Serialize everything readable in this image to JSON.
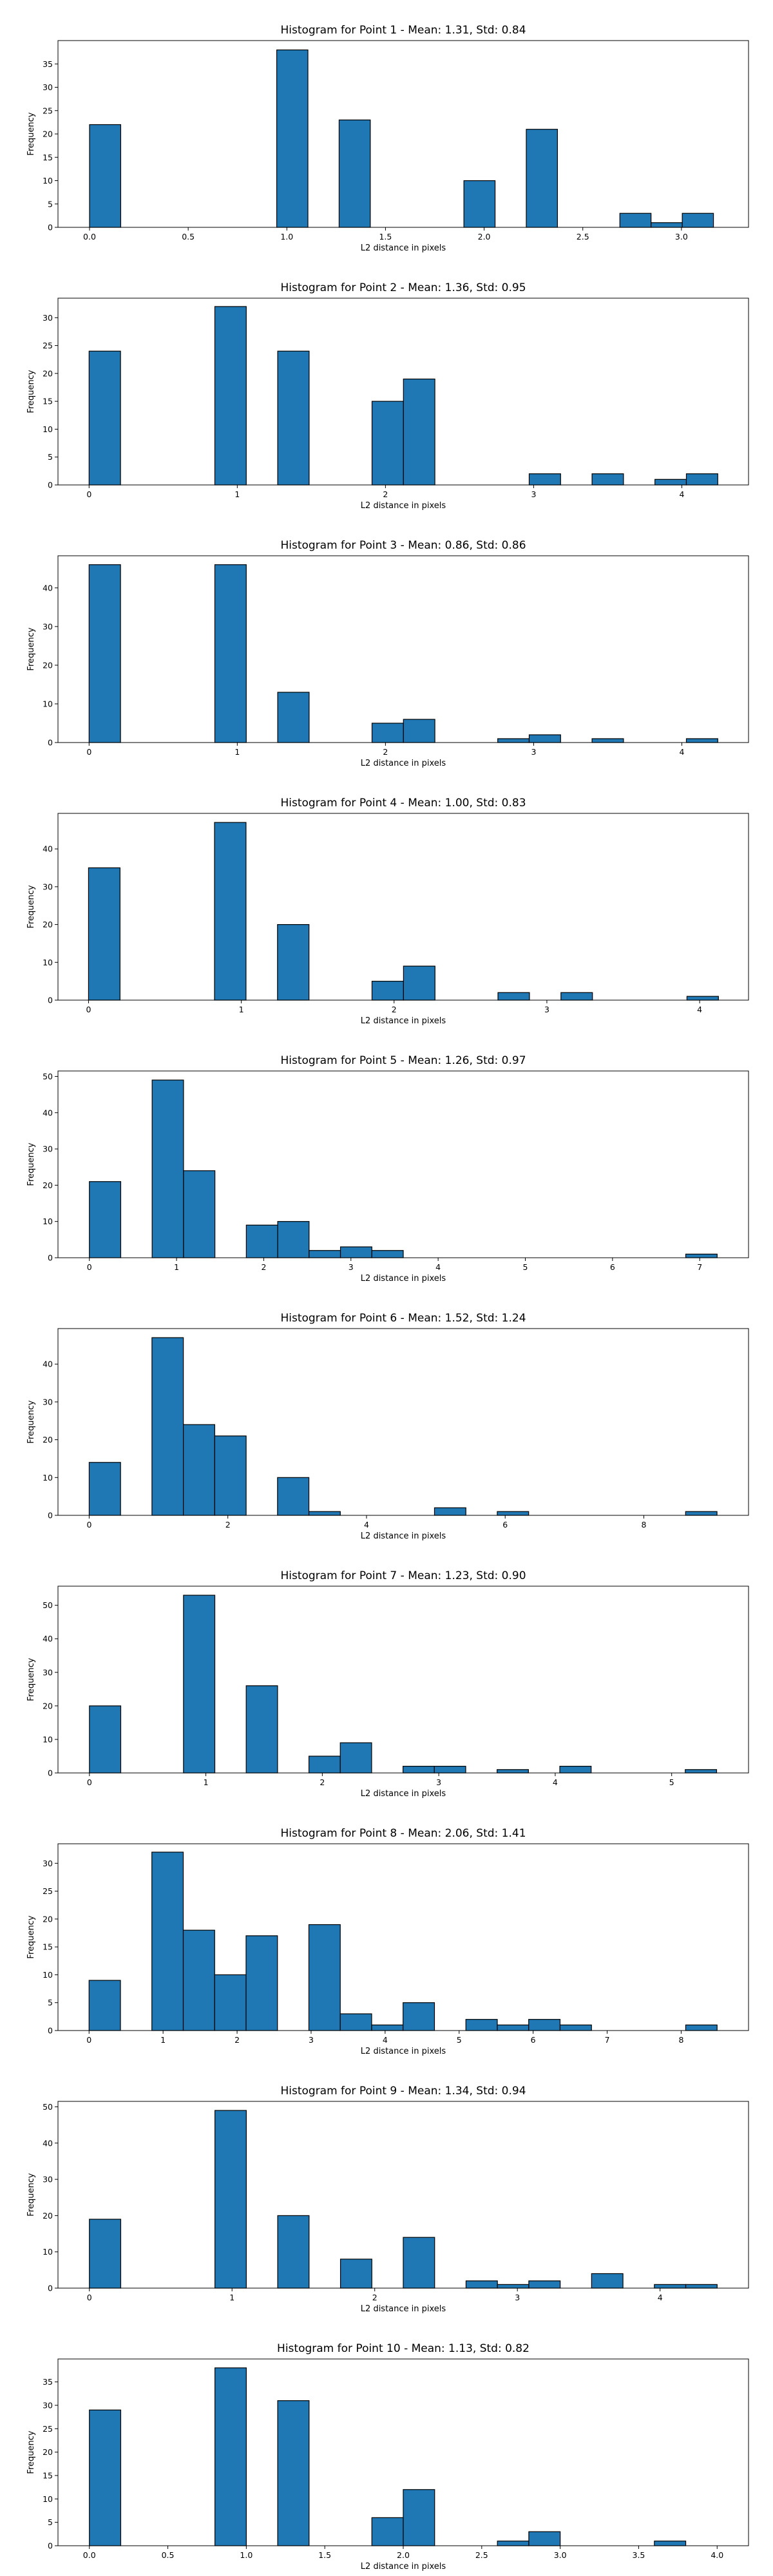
{
  "chart_data": [
    {
      "type": "bar",
      "title": "Histogram for Point 1 - Mean: 1.31, Std: 0.84",
      "xlabel": "L2 distance in pixels",
      "ylabel": "Frequency",
      "xlim": [
        -0.16,
        3.34
      ],
      "ylim": [
        0,
        40
      ],
      "xticks": [
        0,
        0.5,
        1,
        1.5,
        2,
        2.5,
        3
      ],
      "xtick_labels": [
        "0.0",
        "0.5",
        "1.0",
        "1.5",
        "2.0",
        "2.5",
        "3.0"
      ],
      "yticks": [
        0,
        5,
        10,
        15,
        20,
        25,
        30,
        35
      ],
      "bin_width": 0.1581,
      "bins": [
        {
          "x": 0.0,
          "count": 22
        },
        {
          "x": 0.9487,
          "count": 38
        },
        {
          "x": 1.2649,
          "count": 23
        },
        {
          "x": 1.8974,
          "count": 10
        },
        {
          "x": 2.2136,
          "count": 21
        },
        {
          "x": 2.6879,
          "count": 3
        },
        {
          "x": 2.846,
          "count": 1
        },
        {
          "x": 3.0042,
          "count": 3
        }
      ]
    },
    {
      "type": "bar",
      "title": "Histogram for Point 2 - Mean: 1.36, Std: 0.95",
      "xlabel": "L2 distance in pixels",
      "ylabel": "Frequency",
      "xlim": [
        -0.21,
        4.45
      ],
      "ylim": [
        0,
        33.5
      ],
      "xticks": [
        0,
        1,
        2,
        3,
        4
      ],
      "xtick_labels": [
        "0",
        "1",
        "2",
        "3",
        "4"
      ],
      "yticks": [
        0,
        5,
        10,
        15,
        20,
        25,
        30
      ],
      "bin_width": 0.2121,
      "bins": [
        {
          "x": 0.0,
          "count": 24
        },
        {
          "x": 0.8485,
          "count": 32
        },
        {
          "x": 1.2728,
          "count": 24
        },
        {
          "x": 1.9092,
          "count": 15
        },
        {
          "x": 2.1213,
          "count": 19
        },
        {
          "x": 2.9698,
          "count": 2
        },
        {
          "x": 3.3941,
          "count": 2
        },
        {
          "x": 3.8184,
          "count": 1
        },
        {
          "x": 4.0305,
          "count": 2
        }
      ]
    },
    {
      "type": "bar",
      "title": "Histogram for Point 3 - Mean: 0.86, Std: 0.86",
      "xlabel": "L2 distance in pixels",
      "ylabel": "Frequency",
      "xlim": [
        -0.21,
        4.45
      ],
      "ylim": [
        0,
        48.3
      ],
      "xticks": [
        0,
        1,
        2,
        3,
        4
      ],
      "xtick_labels": [
        "0",
        "1",
        "2",
        "3",
        "4"
      ],
      "yticks": [
        0,
        10,
        20,
        30,
        40
      ],
      "bin_width": 0.2121,
      "bins": [
        {
          "x": 0.0,
          "count": 46
        },
        {
          "x": 0.8485,
          "count": 46
        },
        {
          "x": 1.2728,
          "count": 13
        },
        {
          "x": 1.9092,
          "count": 5
        },
        {
          "x": 2.1213,
          "count": 6
        },
        {
          "x": 2.7577,
          "count": 1
        },
        {
          "x": 2.9698,
          "count": 2
        },
        {
          "x": 3.3941,
          "count": 1
        },
        {
          "x": 4.0305,
          "count": 1
        }
      ]
    },
    {
      "type": "bar",
      "title": "Histogram for Point 4 - Mean: 1.00, Std: 0.83",
      "xlabel": "L2 distance in pixels",
      "ylabel": "Frequency",
      "xlim": [
        -0.2,
        4.32
      ],
      "ylim": [
        0,
        49.4
      ],
      "xticks": [
        0,
        1,
        2,
        3,
        4
      ],
      "xtick_labels": [
        "0",
        "1",
        "2",
        "3",
        "4"
      ],
      "yticks": [
        0,
        10,
        20,
        30,
        40
      ],
      "bin_width": 0.2062,
      "bins": [
        {
          "x": 0.0,
          "count": 35
        },
        {
          "x": 0.8246,
          "count": 47
        },
        {
          "x": 1.2369,
          "count": 20
        },
        {
          "x": 1.8554,
          "count": 5
        },
        {
          "x": 2.0616,
          "count": 9
        },
        {
          "x": 2.68,
          "count": 2
        },
        {
          "x": 3.0923,
          "count": 2
        },
        {
          "x": 3.9169,
          "count": 1
        }
      ]
    },
    {
      "type": "bar",
      "title": "Histogram for Point 5 - Mean: 1.26, Std: 0.97",
      "xlabel": "L2 distance in pixels",
      "ylabel": "Frequency",
      "xlim": [
        -0.36,
        7.56
      ],
      "ylim": [
        0,
        51.5
      ],
      "xticks": [
        0,
        1,
        2,
        3,
        4,
        5,
        6,
        7
      ],
      "xtick_labels": [
        "0",
        "1",
        "2",
        "3",
        "4",
        "5",
        "6",
        "7"
      ],
      "yticks": [
        0,
        10,
        20,
        30,
        40,
        50
      ],
      "bin_width": 0.36,
      "bins": [
        {
          "x": 0.0,
          "count": 21
        },
        {
          "x": 0.72,
          "count": 49
        },
        {
          "x": 1.08,
          "count": 24
        },
        {
          "x": 1.8,
          "count": 9
        },
        {
          "x": 2.16,
          "count": 10
        },
        {
          "x": 2.52,
          "count": 2
        },
        {
          "x": 2.88,
          "count": 3
        },
        {
          "x": 3.24,
          "count": 2
        },
        {
          "x": 6.84,
          "count": 1
        }
      ]
    },
    {
      "type": "bar",
      "title": "Histogram for Point 6 - Mean: 1.52, Std: 1.24",
      "xlabel": "L2 distance in pixels",
      "ylabel": "Frequency",
      "xlim": [
        -0.45,
        9.51
      ],
      "ylim": [
        0,
        49.4
      ],
      "xticks": [
        0,
        2,
        4,
        6,
        8
      ],
      "xtick_labels": [
        "0",
        "2",
        "4",
        "6",
        "8"
      ],
      "yticks": [
        0,
        10,
        20,
        30,
        40
      ],
      "bin_width": 0.4528,
      "bins": [
        {
          "x": 0.0,
          "count": 14
        },
        {
          "x": 0.9055,
          "count": 47
        },
        {
          "x": 1.3583,
          "count": 24
        },
        {
          "x": 1.8111,
          "count": 21
        },
        {
          "x": 2.7166,
          "count": 10
        },
        {
          "x": 3.1694,
          "count": 1
        },
        {
          "x": 4.9804,
          "count": 2
        },
        {
          "x": 5.886,
          "count": 1
        },
        {
          "x": 8.6025,
          "count": 1
        }
      ]
    },
    {
      "type": "bar",
      "title": "Histogram for Point 7 - Mean: 1.23, Std: 0.90",
      "xlabel": "L2 distance in pixels",
      "ylabel": "Frequency",
      "xlim": [
        -0.27,
        5.66
      ],
      "ylim": [
        0,
        55.7
      ],
      "xticks": [
        0,
        1,
        2,
        3,
        4,
        5
      ],
      "xtick_labels": [
        "0",
        "1",
        "2",
        "3",
        "4",
        "5"
      ],
      "yticks": [
        0,
        10,
        20,
        30,
        40,
        50
      ],
      "bin_width": 0.2693,
      "bins": [
        {
          "x": 0.0,
          "count": 20
        },
        {
          "x": 0.8078,
          "count": 53
        },
        {
          "x": 1.3464,
          "count": 26
        },
        {
          "x": 1.885,
          "count": 5
        },
        {
          "x": 2.1543,
          "count": 9
        },
        {
          "x": 2.6929,
          "count": 2
        },
        {
          "x": 2.9622,
          "count": 2
        },
        {
          "x": 3.5008,
          "count": 1
        },
        {
          "x": 4.0394,
          "count": 2
        },
        {
          "x": 5.1166,
          "count": 1
        }
      ]
    },
    {
      "type": "bar",
      "title": "Histogram for Point 8 - Mean: 2.06, Std: 1.41",
      "xlabel": "L2 distance in pixels",
      "ylabel": "Frequency",
      "xlim": [
        -0.42,
        8.91
      ],
      "ylim": [
        0,
        33.5
      ],
      "xticks": [
        0,
        1,
        2,
        3,
        4,
        5,
        6,
        7,
        8
      ],
      "xtick_labels": [
        "0",
        "1",
        "2",
        "3",
        "4",
        "5",
        "6",
        "7",
        "8"
      ],
      "yticks": [
        0,
        5,
        10,
        15,
        20,
        25,
        30
      ],
      "bin_width": 0.4243,
      "bins": [
        {
          "x": 0.0,
          "count": 9
        },
        {
          "x": 0.8485,
          "count": 32
        },
        {
          "x": 1.2728,
          "count": 18
        },
        {
          "x": 1.6971,
          "count": 10
        },
        {
          "x": 2.1213,
          "count": 17
        },
        {
          "x": 2.9698,
          "count": 19
        },
        {
          "x": 3.3941,
          "count": 3
        },
        {
          "x": 3.8184,
          "count": 1
        },
        {
          "x": 4.2426,
          "count": 5
        },
        {
          "x": 5.0912,
          "count": 2
        },
        {
          "x": 5.5154,
          "count": 1
        },
        {
          "x": 5.9397,
          "count": 2
        },
        {
          "x": 6.364,
          "count": 1
        },
        {
          "x": 8.061,
          "count": 1
        }
      ]
    },
    {
      "type": "bar",
      "title": "Histogram for Point 9 - Mean: 1.34, Std: 0.94",
      "xlabel": "L2 distance in pixels",
      "ylabel": "Frequency",
      "xlim": [
        -0.22,
        4.62
      ],
      "ylim": [
        0,
        51.5
      ],
      "xticks": [
        0,
        1,
        2,
        3,
        4
      ],
      "xtick_labels": [
        "0",
        "1",
        "2",
        "3",
        "4"
      ],
      "yticks": [
        0,
        10,
        20,
        30,
        40,
        50
      ],
      "bin_width": 0.22,
      "bins": [
        {
          "x": 0.0,
          "count": 19
        },
        {
          "x": 0.88,
          "count": 49
        },
        {
          "x": 1.32,
          "count": 20
        },
        {
          "x": 1.76,
          "count": 8
        },
        {
          "x": 2.2,
          "count": 14
        },
        {
          "x": 2.64,
          "count": 2
        },
        {
          "x": 2.86,
          "count": 1
        },
        {
          "x": 3.08,
          "count": 2
        },
        {
          "x": 3.52,
          "count": 4
        },
        {
          "x": 3.96,
          "count": 1
        },
        {
          "x": 4.18,
          "count": 1
        }
      ]
    },
    {
      "type": "bar",
      "title": "Histogram for Point 10 - Mean: 1.13, Std: 0.82",
      "xlabel": "L2 distance in pixels",
      "ylabel": "Frequency",
      "xlim": [
        -0.2,
        4.2
      ],
      "ylim": [
        0,
        39.9
      ],
      "xticks": [
        0,
        0.5,
        1,
        1.5,
        2,
        2.5,
        3,
        3.5,
        4
      ],
      "xtick_labels": [
        "0.0",
        "0.5",
        "1.0",
        "1.5",
        "2.0",
        "2.5",
        "3.0",
        "3.5",
        "4.0"
      ],
      "yticks": [
        0,
        5,
        10,
        15,
        20,
        25,
        30,
        35
      ],
      "bin_width": 0.2,
      "bins": [
        {
          "x": 0.0,
          "count": 29
        },
        {
          "x": 0.8,
          "count": 38
        },
        {
          "x": 1.2,
          "count": 31
        },
        {
          "x": 1.8,
          "count": 6
        },
        {
          "x": 2.0,
          "count": 12
        },
        {
          "x": 2.6,
          "count": 1
        },
        {
          "x": 2.8,
          "count": 3
        },
        {
          "x": 3.6,
          "count": 1
        }
      ]
    }
  ]
}
